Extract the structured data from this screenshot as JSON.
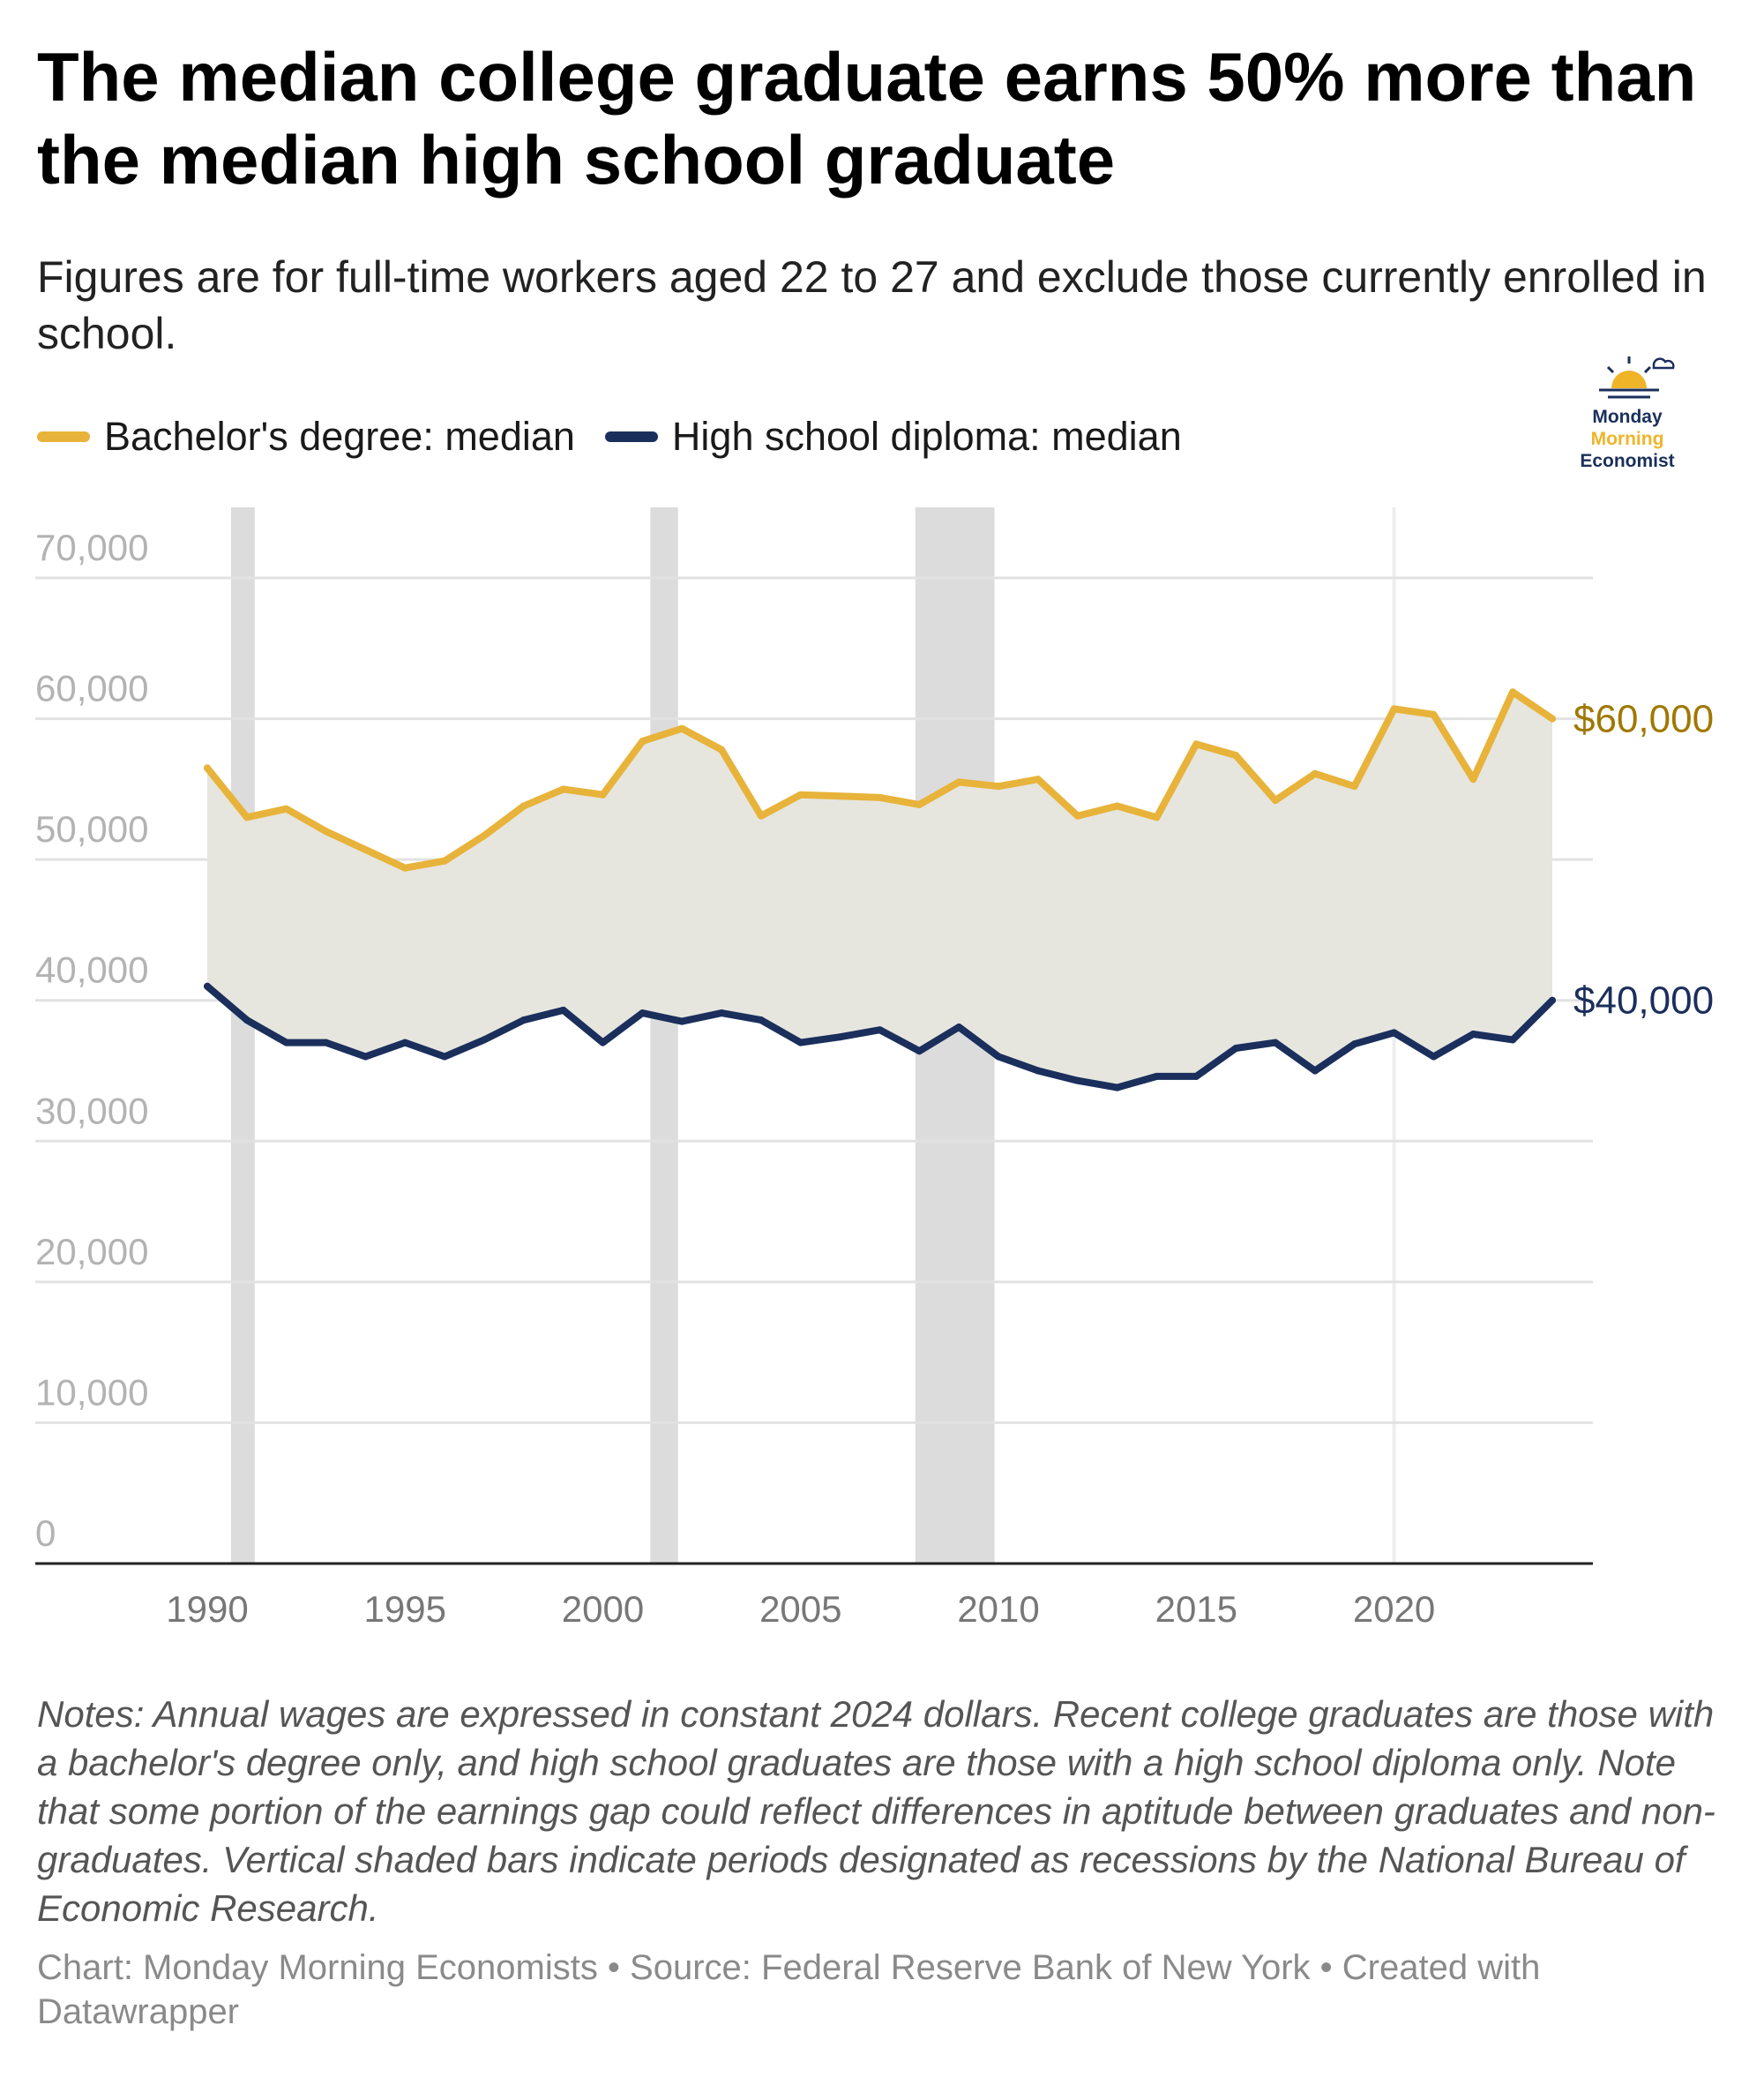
{
  "title": "The median college graduate earns 50% more than the median high school graduate",
  "subtitle": "Figures are for full-time workers aged 22 to 27 and exclude those currently enrolled in school.",
  "legend": [
    {
      "label": "Bachelor's degree: median",
      "color": "#e8b33a"
    },
    {
      "label": "High school diploma: median",
      "color": "#1b2f5c"
    }
  ],
  "logo": {
    "line1": "Monday",
    "line2": "Morning",
    "line3": "Economist"
  },
  "notes": "Notes: Annual wages are expressed in constant 2024 dollars. Recent college graduates are those with a bachelor's degree only, and high school graduates are those with a high school diploma only. Note that some portion of the earnings gap could reflect differences in aptitude between graduates and non-graduates. Vertical shaded bars indicate periods designated as recessions by the National Bureau of Economic Research.",
  "credit": "Chart: Monday Morning Economists • Source: Federal Reserve Bank of New York • Created with Datawrapper",
  "chart_data": {
    "type": "line",
    "x": [
      1990,
      1991,
      1992,
      1993,
      1994,
      1995,
      1996,
      1997,
      1998,
      1999,
      2000,
      2001,
      2002,
      2003,
      2004,
      2005,
      2006,
      2007,
      2008,
      2009,
      2010,
      2011,
      2012,
      2013,
      2014,
      2015,
      2016,
      2017,
      2018,
      2019,
      2020,
      2021,
      2022,
      2023,
      2024
    ],
    "series": [
      {
        "name": "Bachelor's degree: median",
        "color": "#e8b33a",
        "values": [
          56500,
          53000,
          53600,
          52000,
          50700,
          49400,
          49900,
          51700,
          53800,
          55000,
          54600,
          58400,
          59300,
          57800,
          53100,
          54600,
          54500,
          54400,
          53900,
          55500,
          55200,
          55700,
          53100,
          53800,
          53000,
          58200,
          57400,
          54200,
          56100,
          55200,
          60700,
          60300,
          55700,
          61900,
          60000
        ]
      },
      {
        "name": "High school diploma: median",
        "color": "#1b2f5c",
        "values": [
          41000,
          38600,
          37000,
          37000,
          36000,
          37000,
          36000,
          37200,
          38600,
          39300,
          37000,
          39100,
          38500,
          39100,
          38600,
          37000,
          37400,
          37900,
          36400,
          38100,
          36000,
          35000,
          34300,
          33800,
          34600,
          34600,
          36600,
          37000,
          35000,
          36900,
          37700,
          36000,
          37600,
          37200,
          40000
        ]
      }
    ],
    "end_labels": [
      "$60,000",
      "$40,000"
    ],
    "end_label_colors": [
      "#a07800",
      "#1b2f5c"
    ],
    "fill_between_color": "#e6e6df",
    "yticks": [
      0,
      10000,
      20000,
      30000,
      40000,
      50000,
      60000,
      70000
    ],
    "ytick_labels": [
      "0",
      "10,000",
      "20,000",
      "30,000",
      "40,000",
      "50,000",
      "60,000",
      "70,000"
    ],
    "ylim": [
      0,
      70000
    ],
    "xticks": [
      1990,
      1995,
      2000,
      2005,
      2010,
      2015,
      2020
    ],
    "xtick_labels": [
      "1990",
      "1995",
      "2000",
      "2005",
      "2010",
      "2015",
      "2020"
    ],
    "xlim": [
      1989.5,
      2024.5
    ],
    "recessions": [
      [
        1990.6,
        1991.2
      ],
      [
        2001.2,
        2001.9
      ],
      [
        2007.9,
        2009.9
      ]
    ],
    "grid": true,
    "legend_position": "top-left"
  }
}
